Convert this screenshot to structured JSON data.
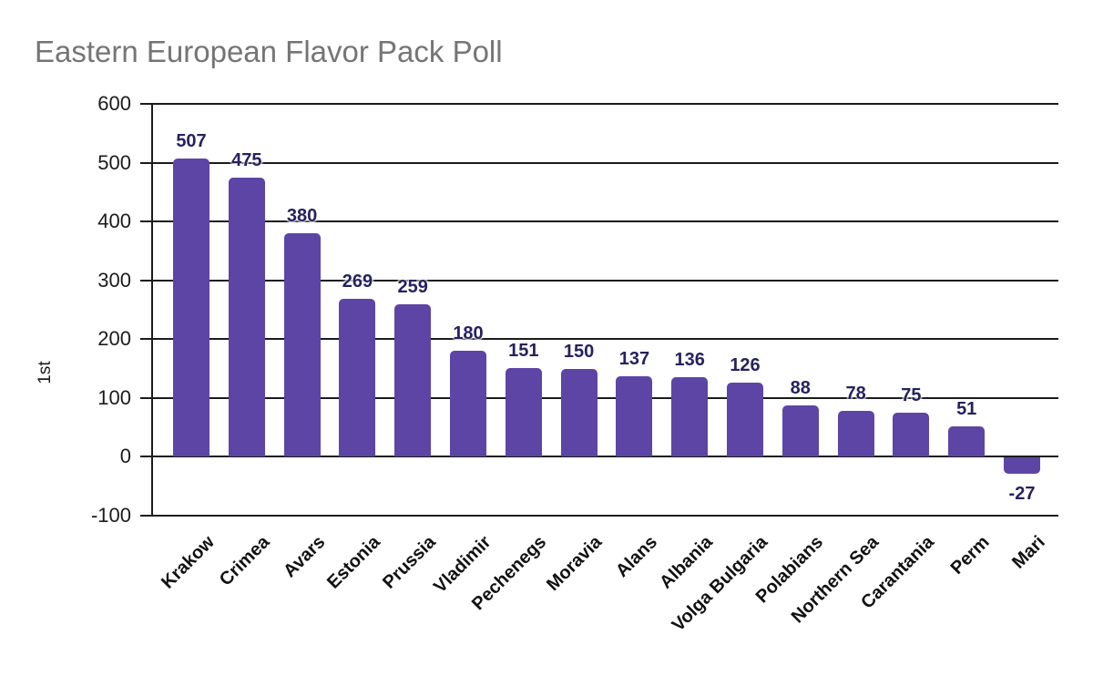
{
  "title": "Eastern European Flavor Pack Poll",
  "chart_data": {
    "type": "bar",
    "title": "Eastern European Flavor Pack Poll",
    "xlabel": "",
    "ylabel": "1st",
    "categories": [
      "Krakow",
      "Crimea",
      "Avars",
      "Estonia",
      "Prussia",
      "Vladimir",
      "Pechenegs",
      "Moravia",
      "Alans",
      "Albania",
      "Volga Bulgaria",
      "Polabians",
      "Northern Sea",
      "Carantania",
      "Perm",
      "Mari"
    ],
    "values": [
      507,
      475,
      380,
      269,
      259,
      180,
      151,
      150,
      137,
      136,
      126,
      88,
      78,
      75,
      51,
      -27
    ],
    "value_labels": [
      "507",
      "475",
      "380",
      "269",
      "259",
      "180",
      "151",
      "150",
      "137",
      "136",
      "126",
      "88",
      "78",
      "75",
      "51",
      "-27"
    ],
    "ylim": [
      -100,
      600
    ],
    "yticks": [
      600,
      500,
      400,
      300,
      200,
      100,
      0,
      -100
    ],
    "ytick_labels": [
      "600",
      "500",
      "400",
      "300",
      "200",
      "100",
      "0",
      "-100"
    ],
    "grid": true,
    "legend_position": "none",
    "colors": {
      "bar": "#5c45a5",
      "value_label": "#262160",
      "title": "#757575",
      "axis": "#1b1b1b",
      "x_label": "#111111",
      "background": "#ffffff"
    }
  }
}
